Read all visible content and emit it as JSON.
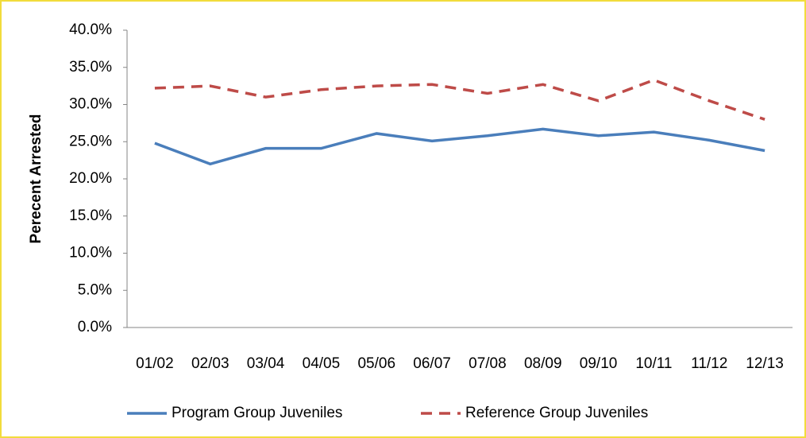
{
  "chart_data": {
    "type": "line",
    "y_label": "Perecent  Arrested",
    "categories": [
      "01/02",
      "02/03",
      "03/04",
      "04/05",
      "05/06",
      "06/07",
      "07/08",
      "08/09",
      "09/10",
      "10/11",
      "11/12",
      "12/13"
    ],
    "series": [
      {
        "name": "Program Group Juveniles",
        "color": "#4a7ebb",
        "dash": false,
        "values": [
          24.8,
          22.0,
          24.1,
          24.1,
          26.1,
          25.1,
          25.8,
          26.7,
          25.8,
          26.3,
          25.2,
          23.8
        ]
      },
      {
        "name": "Reference Group Juveniles",
        "color": "#be4b48",
        "dash": true,
        "values": [
          32.2,
          32.5,
          31.0,
          32.0,
          32.5,
          32.7,
          31.5,
          32.7,
          30.5,
          33.3,
          30.5,
          28.0
        ]
      }
    ],
    "ylim": [
      0,
      40
    ],
    "yticks": [
      {
        "value": 0,
        "label": "0.0%"
      },
      {
        "value": 5,
        "label": "5.0%"
      },
      {
        "value": 10,
        "label": "10.0%"
      },
      {
        "value": 15,
        "label": "15.0%"
      },
      {
        "value": 20,
        "label": "20.0%"
      },
      {
        "value": 25,
        "label": "25.0%"
      },
      {
        "value": 30,
        "label": "30.0%"
      },
      {
        "value": 35,
        "label": "35.0%"
      },
      {
        "value": 40,
        "label": "40.0%"
      }
    ],
    "grid": false,
    "legend": "bottom"
  }
}
